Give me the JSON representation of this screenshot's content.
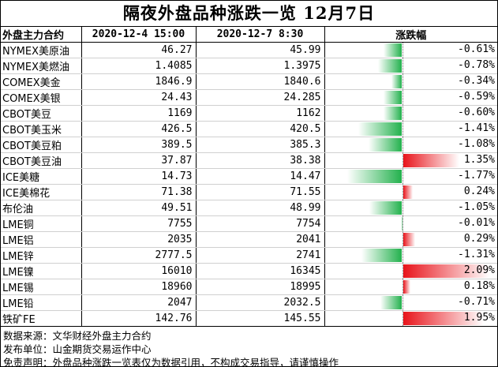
{
  "title": "隔夜外盘品种涨跌一览 12月7日",
  "headers": [
    "外盘主力合约",
    "2020-12-4 15:00",
    "2020-12-7 8:30",
    "涨跌幅"
  ],
  "colors": {
    "down": "#23b14d",
    "up": "#e8141b"
  },
  "rows": [
    {
      "name": "NYMEX美原油",
      "prev": "46.27",
      "curr": "45.99",
      "pct": "-0.61%",
      "change": -0.61
    },
    {
      "name": "NYMEX美燃油",
      "prev": "1.4085",
      "curr": "1.3975",
      "pct": "-0.78%",
      "change": -0.78
    },
    {
      "name": "COMEX美金",
      "prev": "1846.9",
      "curr": "1840.6",
      "pct": "-0.34%",
      "change": -0.34
    },
    {
      "name": "COMEX美银",
      "prev": "24.43",
      "curr": "24.285",
      "pct": "-0.59%",
      "change": -0.59
    },
    {
      "name": "CBOT美豆",
      "prev": "1169",
      "curr": "1162",
      "pct": "-0.60%",
      "change": -0.6
    },
    {
      "name": "CBOT美玉米",
      "prev": "426.5",
      "curr": "420.5",
      "pct": "-1.41%",
      "change": -1.41
    },
    {
      "name": "CBOT美豆粕",
      "prev": "389.5",
      "curr": "385.3",
      "pct": "-1.08%",
      "change": -1.08
    },
    {
      "name": "CBOT美豆油",
      "prev": "37.87",
      "curr": "38.38",
      "pct": "1.35%",
      "change": 1.35
    },
    {
      "name": "ICE美糖",
      "prev": "14.73",
      "curr": "14.47",
      "pct": "-1.77%",
      "change": -1.77
    },
    {
      "name": "ICE美棉花",
      "prev": "71.38",
      "curr": "71.55",
      "pct": "0.24%",
      "change": 0.24
    },
    {
      "name": "布伦油",
      "prev": "49.51",
      "curr": "48.99",
      "pct": "-1.05%",
      "change": -1.05
    },
    {
      "name": "LME铜",
      "prev": "7755",
      "curr": "7754",
      "pct": "-0.01%",
      "change": -0.01
    },
    {
      "name": "LME铝",
      "prev": "2035",
      "curr": "2041",
      "pct": "0.29%",
      "change": 0.29
    },
    {
      "name": "LME锌",
      "prev": "2777.5",
      "curr": "2741",
      "pct": "-1.31%",
      "change": -1.31
    },
    {
      "name": "LME镍",
      "prev": "16010",
      "curr": "16345",
      "pct": "2.09%",
      "change": 2.09
    },
    {
      "name": "LME锡",
      "prev": "18960",
      "curr": "18995",
      "pct": "0.18%",
      "change": 0.18
    },
    {
      "name": "LME铅",
      "prev": "2047",
      "curr": "2032.5",
      "pct": "-0.71%",
      "change": -0.71
    },
    {
      "name": "铁矿FE",
      "prev": "142.76",
      "curr": "145.55",
      "pct": "1.95%",
      "change": 1.95
    }
  ],
  "notes": [
    "数据来源：文华财经外盘主力合约",
    "发布单位：山金期货交易运作中心",
    "免责声明：外盘品种涨跌一览表仅为数据引用，不构成交易指导，请谨慎操作"
  ]
}
